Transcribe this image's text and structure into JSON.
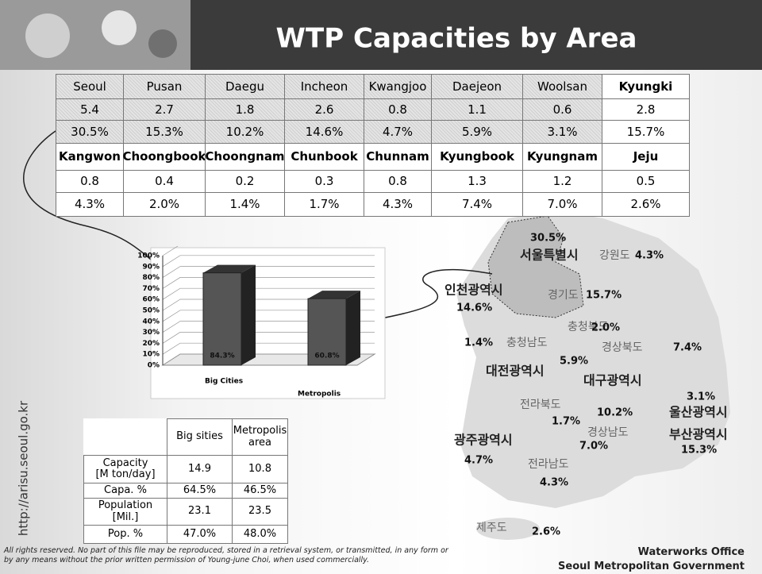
{
  "header": {
    "title": "WTP Capacities by Area",
    "url": "http://arisu.seoul.go.kr"
  },
  "area_table": {
    "rows": [
      [
        "Seoul",
        "Pusan",
        "Daegu",
        "Incheon",
        "Kwangjoo",
        "Daejeon",
        "Woolsan",
        "Kyungki"
      ],
      [
        "5.4",
        "2.7",
        "1.8",
        "2.6",
        "0.8",
        "1.1",
        "0.6",
        "2.8"
      ],
      [
        "30.5%",
        "15.3%",
        "10.2%",
        "14.6%",
        "4.7%",
        "5.9%",
        "3.1%",
        "15.7%"
      ],
      [
        "Kangwon",
        "Choongbook",
        "Choongnam",
        "Chunbook",
        "Chunnam",
        "Kyungbook",
        "Kyungnam",
        "Jeju"
      ],
      [
        "0.8",
        "0.4",
        "0.2",
        "0.3",
        "0.8",
        "1.3",
        "1.2",
        "0.5"
      ],
      [
        "4.3%",
        "2.0%",
        "1.4%",
        "1.7%",
        "4.3%",
        "7.4%",
        "7.0%",
        "2.6%"
      ]
    ]
  },
  "chart_data": {
    "type": "bar",
    "categories": [
      "Big Cities",
      "Metropolis"
    ],
    "values": [
      84.3,
      60.8
    ],
    "value_labels": [
      "84.3%",
      "60.8%"
    ],
    "color": "#555555",
    "ylim": [
      0,
      100
    ],
    "yticks": [
      {
        "value": 0,
        "label": "0%"
      },
      {
        "value": 10,
        "label": "10%"
      },
      {
        "value": 20,
        "label": "20%"
      },
      {
        "value": 30,
        "label": "30%"
      },
      {
        "value": 40,
        "label": "40%"
      },
      {
        "value": 50,
        "label": "50%"
      },
      {
        "value": 60,
        "label": "60%"
      },
      {
        "value": 70,
        "label": "70%"
      },
      {
        "value": 80,
        "label": "80%"
      },
      {
        "value": 90,
        "label": "90%"
      },
      {
        "value": 100,
        "label": "100%"
      }
    ],
    "grid": true
  },
  "summary_table": {
    "header": [
      "Big sities",
      "Metropolis\narea"
    ],
    "rows": [
      [
        "Capacity\n[M ton/day]",
        "14.9",
        "10.8"
      ],
      [
        "Capa. %",
        "64.5%",
        "46.5%"
      ],
      [
        "Population\n[Mil.]",
        "23.1",
        "23.5"
      ],
      [
        "Pop. %",
        "47.0%",
        "48.0%"
      ]
    ]
  },
  "map_labels": [
    {
      "name": "서울특별시",
      "value": "30.5%"
    },
    {
      "name": "강원도",
      "value": "4.3%"
    },
    {
      "name": "인천광역시",
      "value": "14.6%"
    },
    {
      "name": "경기도",
      "value": "15.7%"
    },
    {
      "name": "충청북도",
      "value": "2.0%"
    },
    {
      "name": "충청남도",
      "value": "1.4%"
    },
    {
      "name": "경상북도",
      "value": "7.4%"
    },
    {
      "name": "대전광역시",
      "value": "5.9%"
    },
    {
      "name": "대구광역시",
      "value": "10.2%"
    },
    {
      "name": "울산광역시",
      "value": "3.1%"
    },
    {
      "name": "부산광역시",
      "value": "15.3%"
    },
    {
      "name": "전라북도",
      "value": "1.7%"
    },
    {
      "name": "경상남도",
      "value": "7.0%"
    },
    {
      "name": "광주광역시",
      "value": "4.7%"
    },
    {
      "name": "전라남도",
      "value": "4.3%"
    },
    {
      "name": "제주도",
      "value": "2.6%"
    }
  ],
  "footer": {
    "notice": "All rights reserved. No part of this file may be reproduced, stored in a retrieval system, or transmitted, in any form or by any means without the prior written permission of Young-june Choi, when used commercially.",
    "office": "Waterworks Office",
    "government": "Seoul Metropolitan Government"
  }
}
